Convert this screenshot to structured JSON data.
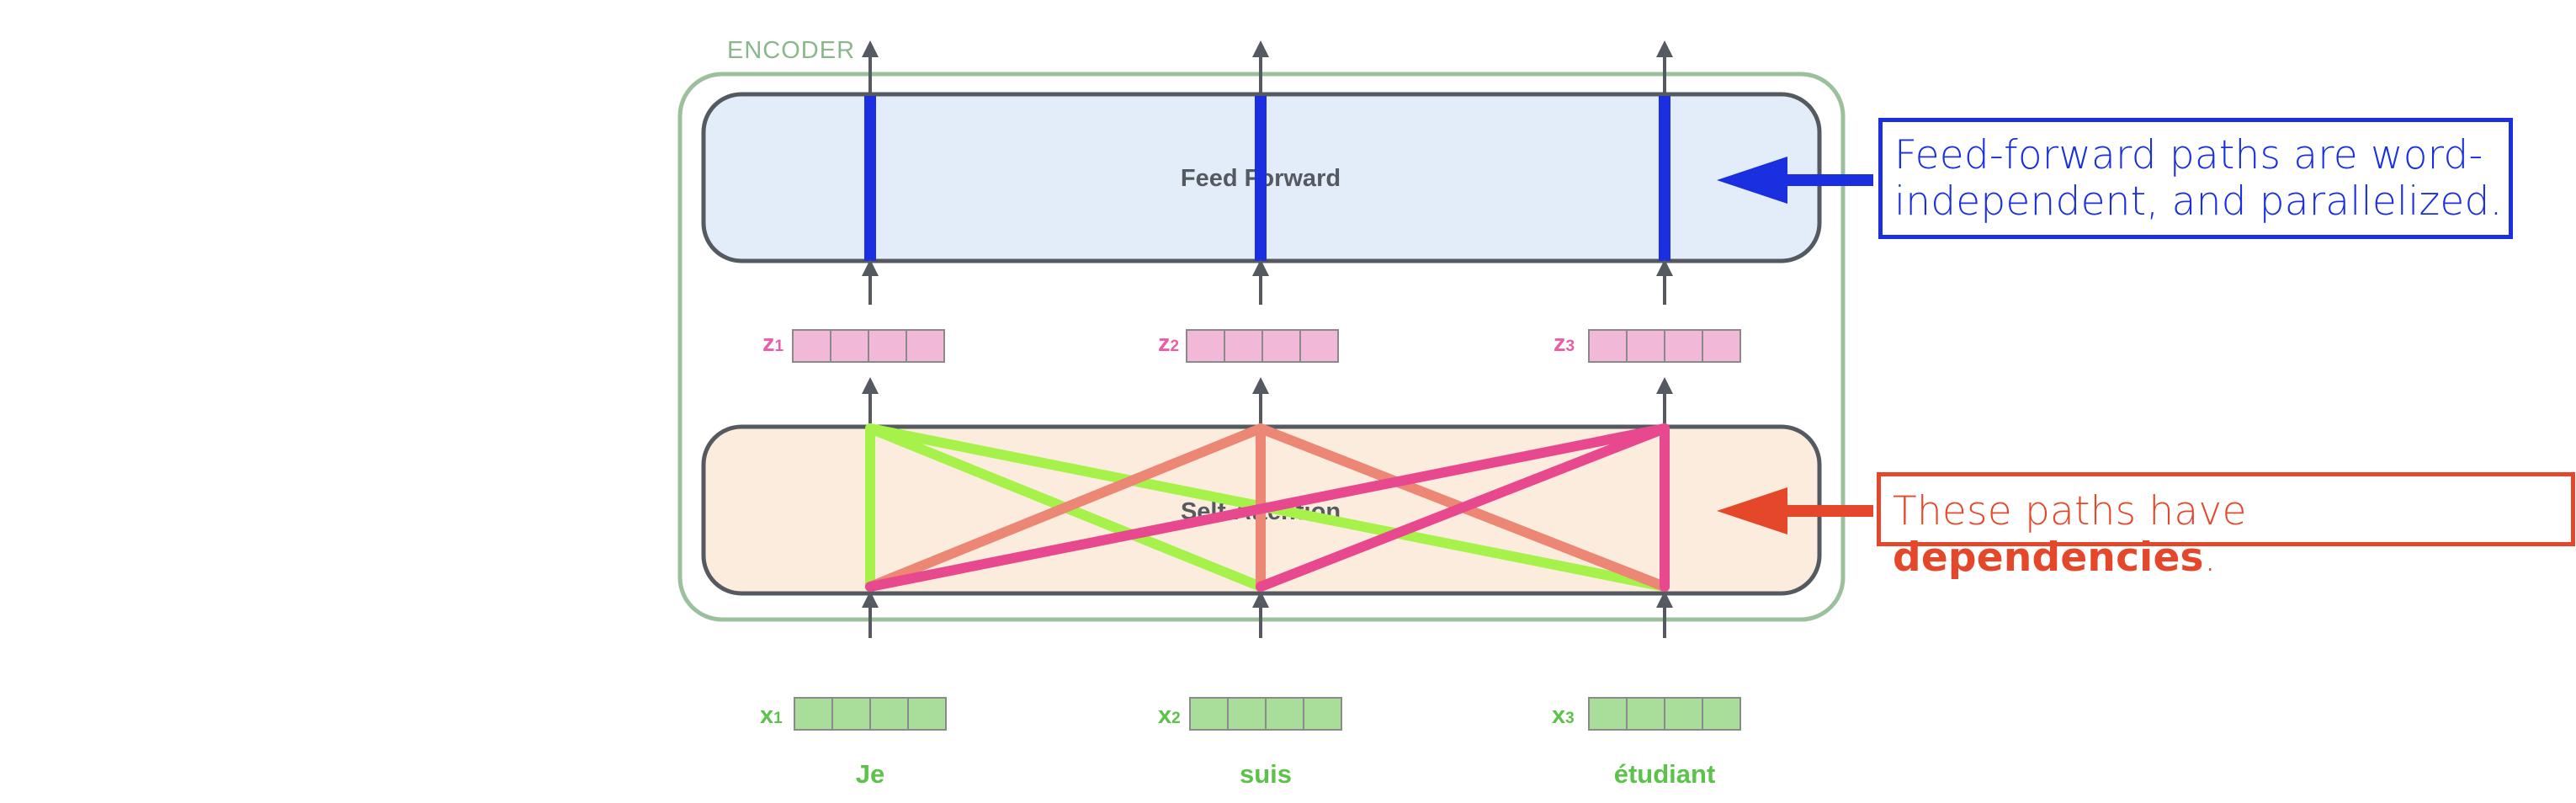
{
  "encoder_label": "ENCODER",
  "feed_forward_label": "Feed Forward",
  "self_attention_label": "Self-Attention",
  "z_labels": [
    {
      "letter": "z",
      "sub": "1"
    },
    {
      "letter": "z",
      "sub": "2"
    },
    {
      "letter": "z",
      "sub": "3"
    }
  ],
  "x_labels": [
    {
      "letter": "x",
      "sub": "1"
    },
    {
      "letter": "x",
      "sub": "2"
    },
    {
      "letter": "x",
      "sub": "3"
    }
  ],
  "words": [
    "Je",
    "suis",
    "étudiant"
  ],
  "notes": {
    "feed_forward": {
      "line1": "Feed-forward paths are word-",
      "line2": "independent, and parallelized."
    },
    "self_attention": {
      "prefix": "These paths have ",
      "bold": "dependencies",
      "suffix": "."
    }
  },
  "colors": {
    "encoder_border": "#9cc09c",
    "encoder_label": "#8ab88a",
    "block_border": "#555a60",
    "feed_forward_fill": "#e3edfa",
    "self_attention_fill": "#fbecdd",
    "z_fill": "#f2b8d8",
    "z_label": "#e95ea6",
    "x_fill": "#a9dd9a",
    "x_label": "#5cc34a",
    "ff_path": "#1a2fe0",
    "path_word1": "#a6f24a",
    "path_word2": "#ec8675",
    "path_word3": "#e8498e",
    "note_blue": "#1a2fe0",
    "note_red": "#e5472a",
    "arrow": "#555a60"
  }
}
